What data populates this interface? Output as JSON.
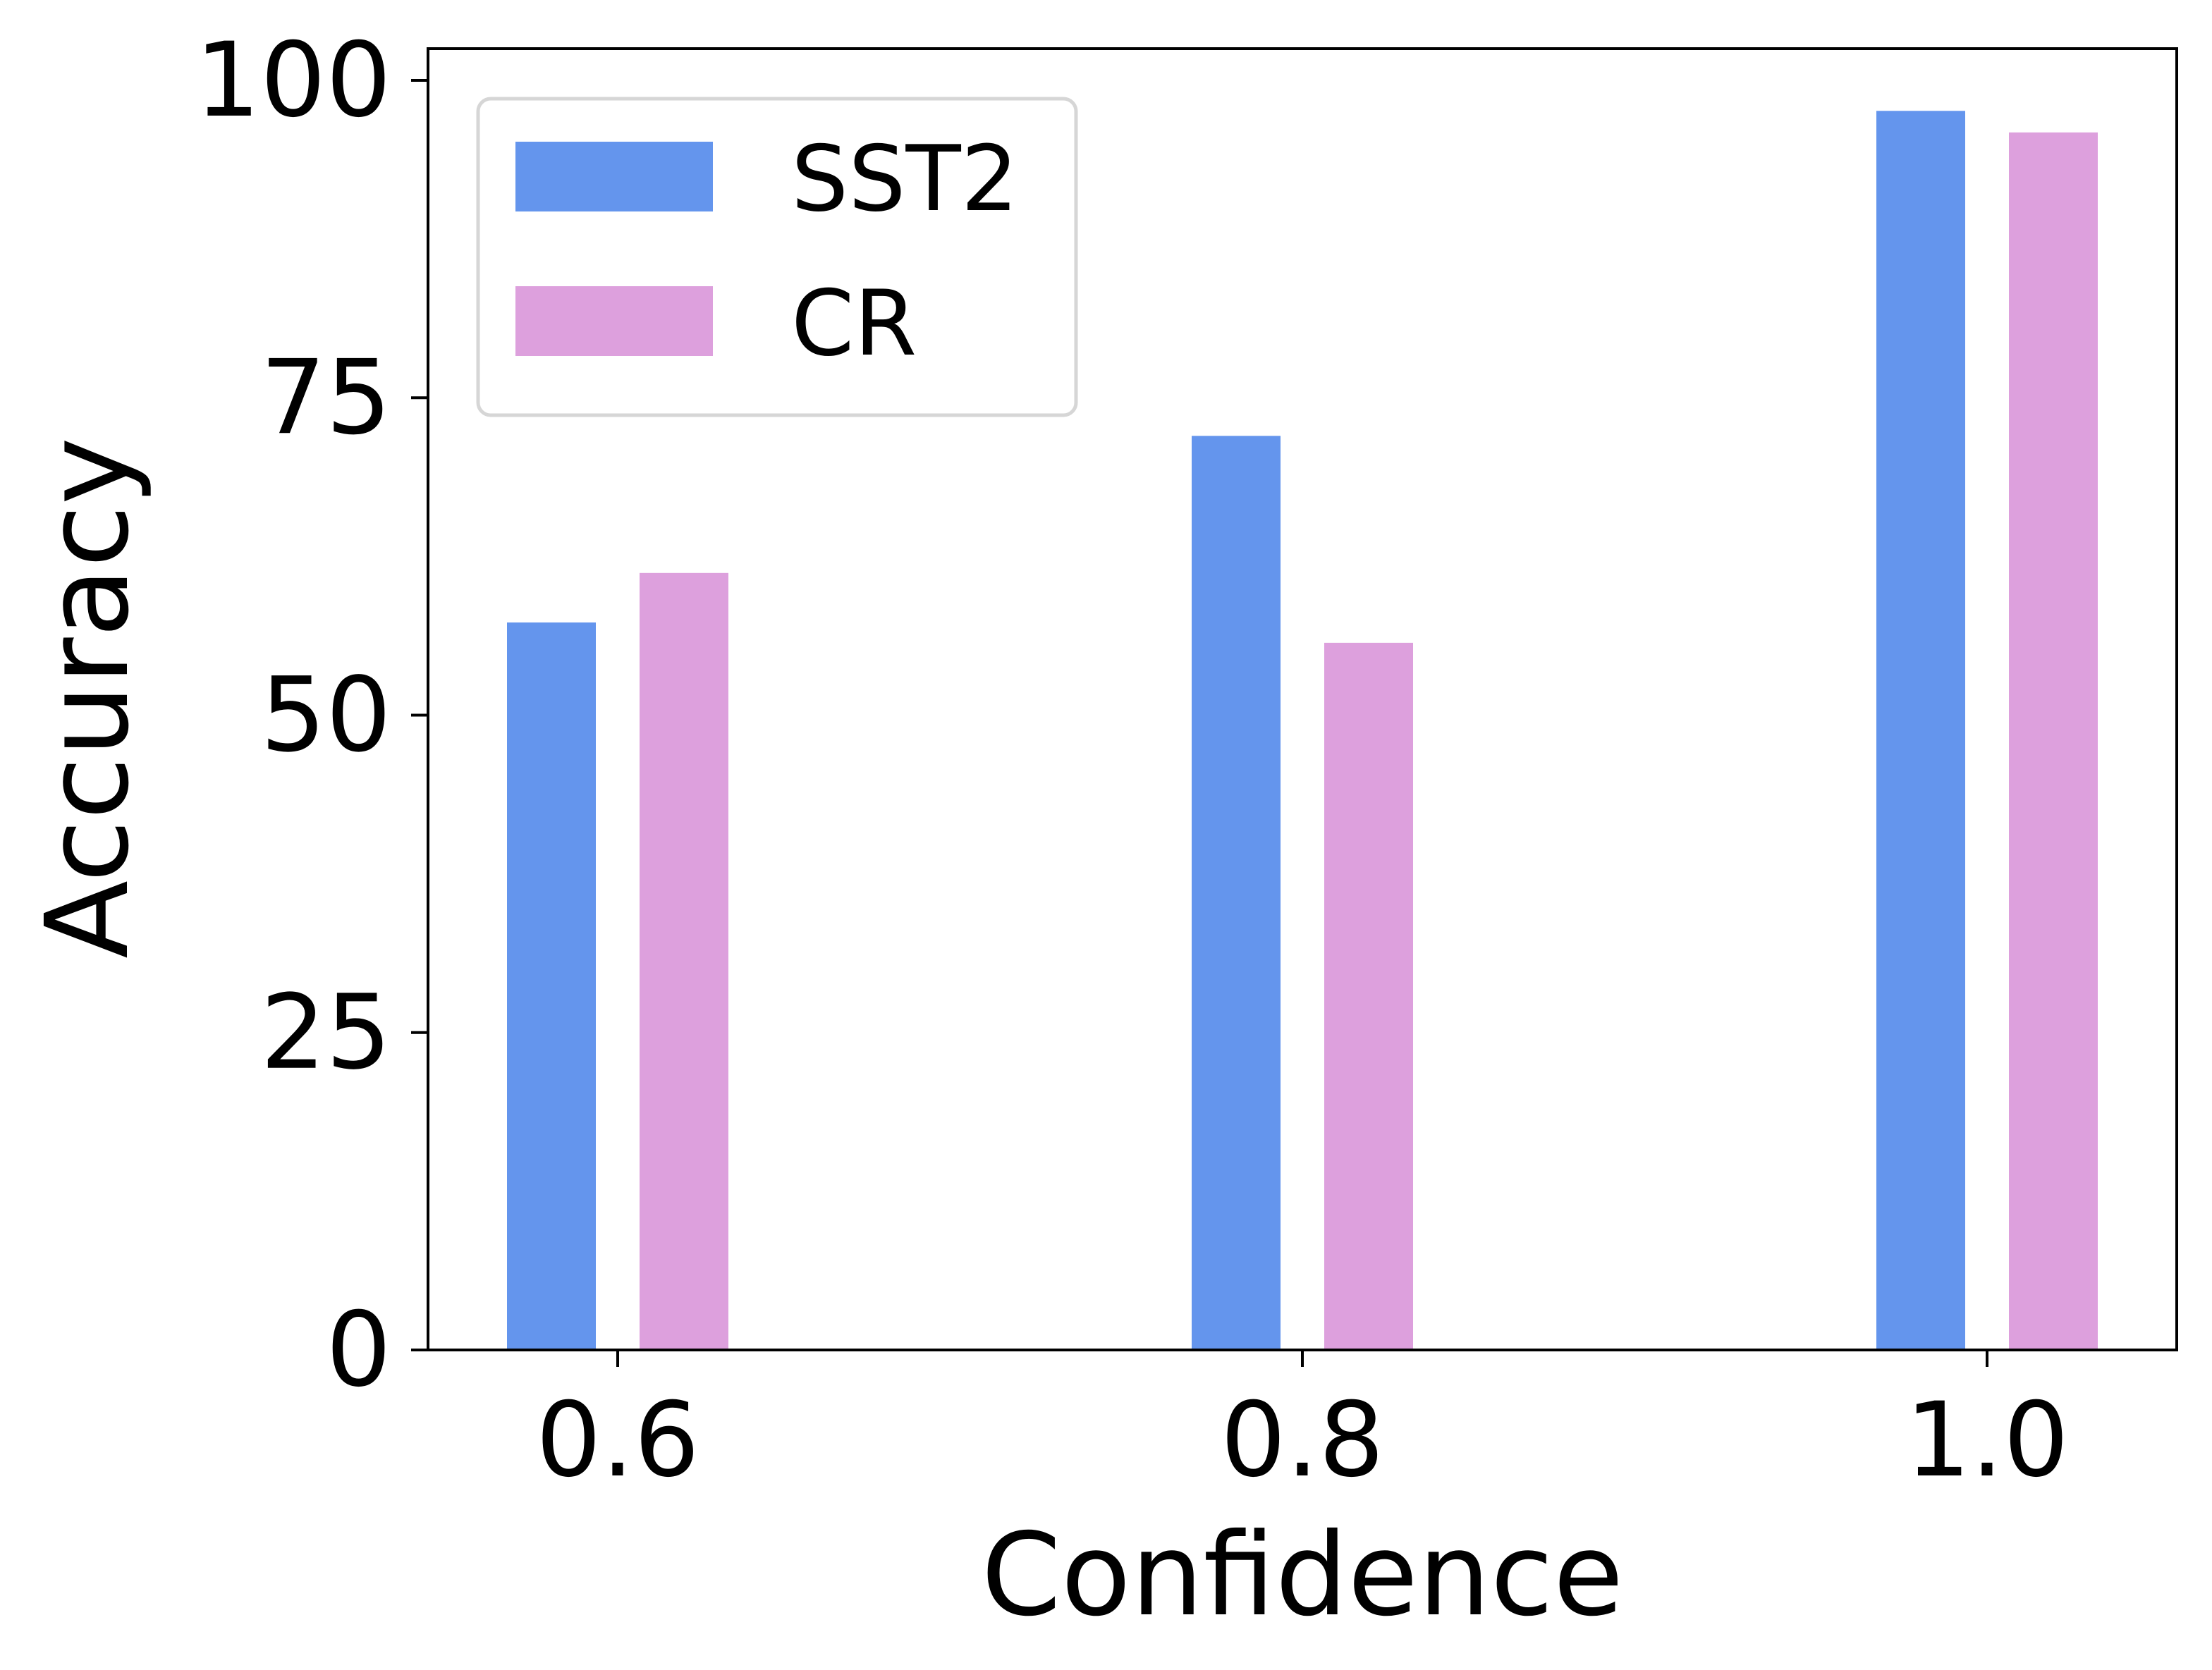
{
  "chart_data": {
    "type": "bar",
    "title": "",
    "xlabel": "Confidence",
    "ylabel": "Accuracy",
    "categories": [
      "0.6",
      "0.8",
      "1.0"
    ],
    "series": [
      {
        "name": "SST2",
        "values": [
          57.3,
          72.0,
          97.6
        ],
        "color": "#6495ED"
      },
      {
        "name": "CR",
        "values": [
          61.2,
          55.7,
          95.9
        ],
        "color": "#DDA0DD"
      }
    ],
    "ylim": [
      0,
      102.5
    ],
    "yticks": [
      "0",
      "25",
      "50",
      "75",
      "100"
    ],
    "grid": false,
    "legend": {
      "position": "top-left"
    }
  }
}
